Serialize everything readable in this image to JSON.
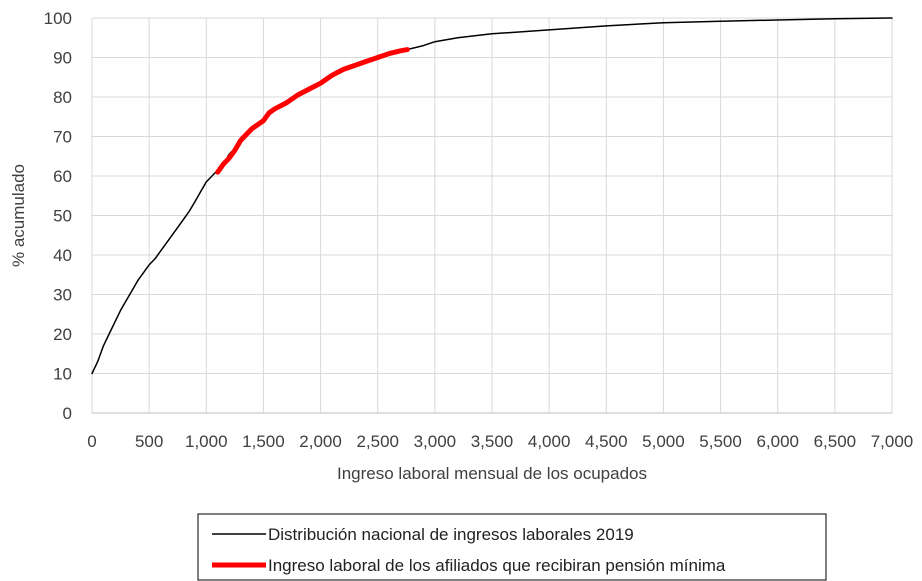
{
  "chart_data": {
    "type": "line",
    "xlabel": "Ingreso laboral mensual de los ocupados",
    "ylabel": "% acumulado",
    "xlim": [
      0,
      7000
    ],
    "ylim": [
      0,
      100
    ],
    "x_ticks": [
      "0",
      "500",
      "1,000",
      "1,500",
      "2,000",
      "2,500",
      "3,000",
      "3,500",
      "4,000",
      "4,500",
      "5,000",
      "5,500",
      "6,000",
      "6,500",
      "7,000"
    ],
    "y_ticks": [
      "0",
      "10",
      "20",
      "30",
      "40",
      "50",
      "60",
      "70",
      "80",
      "90",
      "100"
    ],
    "grid": true,
    "legend_position": "bottom",
    "series": [
      {
        "name": "Distribución nacional de ingresos laborales 2019",
        "color": "#000000",
        "points": [
          [
            0,
            10
          ],
          [
            50,
            13
          ],
          [
            100,
            17
          ],
          [
            150,
            20
          ],
          [
            200,
            23
          ],
          [
            250,
            26
          ],
          [
            300,
            28.5
          ],
          [
            350,
            31
          ],
          [
            400,
            33.5
          ],
          [
            450,
            35.5
          ],
          [
            500,
            37.5
          ],
          [
            550,
            39
          ],
          [
            600,
            41
          ],
          [
            650,
            43
          ],
          [
            700,
            45
          ],
          [
            750,
            47
          ],
          [
            800,
            49
          ],
          [
            850,
            51
          ],
          [
            900,
            53.5
          ],
          [
            950,
            56
          ],
          [
            1000,
            58.5
          ],
          [
            1050,
            60
          ],
          [
            1100,
            61.5
          ],
          [
            1150,
            63
          ],
          [
            1200,
            65.5
          ],
          [
            1250,
            67
          ],
          [
            1300,
            69.5
          ],
          [
            1350,
            70.5
          ],
          [
            1400,
            72
          ],
          [
            1450,
            73
          ],
          [
            1500,
            74
          ],
          [
            1550,
            76
          ],
          [
            1600,
            77
          ],
          [
            1700,
            78.5
          ],
          [
            1800,
            80.5
          ],
          [
            1900,
            82
          ],
          [
            2000,
            83.5
          ],
          [
            2100,
            85.5
          ],
          [
            2200,
            87
          ],
          [
            2300,
            88
          ],
          [
            2400,
            89
          ],
          [
            2500,
            90
          ],
          [
            2600,
            91
          ],
          [
            2700,
            91.7
          ],
          [
            2800,
            92.3
          ],
          [
            2900,
            93
          ],
          [
            3000,
            94
          ],
          [
            3200,
            95
          ],
          [
            3500,
            96
          ],
          [
            4000,
            97
          ],
          [
            4500,
            98
          ],
          [
            5000,
            98.8
          ],
          [
            5500,
            99.2
          ],
          [
            6000,
            99.5
          ],
          [
            6500,
            99.8
          ],
          [
            7000,
            100
          ]
        ]
      },
      {
        "name": "Ingreso laboral de los afiliados que recibiran pensión mínima",
        "color": "#ff0000",
        "points": [
          [
            1100,
            61
          ],
          [
            1150,
            63
          ],
          [
            1200,
            64.5
          ],
          [
            1250,
            66.5
          ],
          [
            1300,
            69
          ],
          [
            1350,
            70.5
          ],
          [
            1400,
            72
          ],
          [
            1450,
            73
          ],
          [
            1500,
            74
          ],
          [
            1550,
            76
          ],
          [
            1600,
            77
          ],
          [
            1700,
            78.5
          ],
          [
            1800,
            80.5
          ],
          [
            1900,
            82
          ],
          [
            2000,
            83.5
          ],
          [
            2100,
            85.5
          ],
          [
            2200,
            87
          ],
          [
            2300,
            88
          ],
          [
            2400,
            89
          ],
          [
            2500,
            90
          ],
          [
            2600,
            91
          ],
          [
            2700,
            91.7
          ],
          [
            2760,
            92
          ]
        ]
      }
    ]
  }
}
